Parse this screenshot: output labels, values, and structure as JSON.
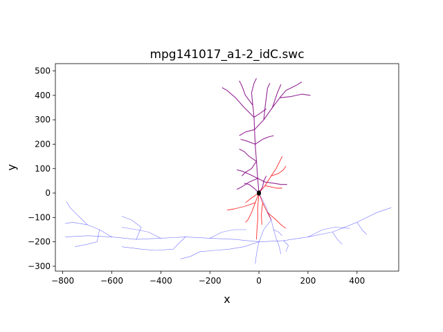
{
  "chart_data": {
    "type": "line",
    "title": "mpg141017_a1-2_idC.swc",
    "xlabel": "x",
    "ylabel": "y",
    "xlim": [
      -830,
      570
    ],
    "ylim": [
      -320,
      530
    ],
    "xticks": [
      -800,
      -600,
      -400,
      -200,
      0,
      200,
      400
    ],
    "yticks": [
      -300,
      -200,
      -100,
      0,
      100,
      200,
      300,
      400,
      500
    ],
    "grid": false,
    "legend": "none",
    "colors": {
      "soma": "#000000",
      "axon": "#0000ff",
      "basal_dendrite": "#ff0000",
      "apical_dendrite": "#800080"
    },
    "series": [
      {
        "type": "apical_dendrite",
        "segments": [
          [
            [
              0,
              0
            ],
            [
              -5,
              60
            ],
            [
              -10,
              130
            ],
            [
              -15,
              200
            ],
            [
              -18,
              260
            ],
            [
              -20,
              310
            ],
            [
              -25,
              360
            ],
            [
              -30,
              410
            ]
          ],
          [
            [
              -18,
              260
            ],
            [
              20,
              300
            ],
            [
              55,
              350
            ],
            [
              85,
              390
            ],
            [
              110,
              420
            ],
            [
              150,
              440
            ],
            [
              175,
              455
            ]
          ],
          [
            [
              85,
              390
            ],
            [
              130,
              395
            ],
            [
              175,
              405
            ],
            [
              210,
              400
            ]
          ],
          [
            [
              -20,
              310
            ],
            [
              -60,
              350
            ],
            [
              -95,
              390
            ],
            [
              -130,
              420
            ],
            [
              -150,
              432
            ]
          ],
          [
            [
              -25,
              360
            ],
            [
              -55,
              400
            ],
            [
              -70,
              440
            ],
            [
              -80,
              460
            ]
          ],
          [
            [
              -30,
              410
            ],
            [
              -20,
              450
            ],
            [
              -10,
              470
            ]
          ],
          [
            [
              20,
              300
            ],
            [
              25,
              350
            ],
            [
              30,
              390
            ],
            [
              35,
              430
            ],
            [
              45,
              450
            ]
          ],
          [
            [
              55,
              350
            ],
            [
              75,
              410
            ],
            [
              90,
              445
            ]
          ],
          [
            [
              -10,
              130
            ],
            [
              -40,
              150
            ],
            [
              -60,
              170
            ],
            [
              -80,
              180
            ]
          ],
          [
            [
              -15,
              200
            ],
            [
              15,
              220
            ],
            [
              40,
              230
            ],
            [
              60,
              235
            ]
          ],
          [
            [
              -5,
              60
            ],
            [
              -35,
              75
            ],
            [
              -70,
              90
            ],
            [
              -90,
              95
            ]
          ],
          [
            [
              -5,
              60
            ],
            [
              25,
              45
            ],
            [
              60,
              40
            ],
            [
              90,
              35
            ],
            [
              115,
              35
            ]
          ],
          [
            [
              -5,
              60
            ],
            [
              -40,
              45
            ],
            [
              -70,
              25
            ],
            [
              -90,
              15
            ]
          ],
          [
            [
              -10,
              130
            ],
            [
              -30,
              100
            ],
            [
              -55,
              85
            ],
            [
              -70,
              70
            ]
          ],
          [
            [
              -18,
              260
            ],
            [
              -55,
              250
            ],
            [
              -80,
              235
            ]
          ],
          [
            [
              -15,
              200
            ],
            [
              -55,
              215
            ],
            [
              -75,
              220
            ]
          ],
          [
            [
              -20,
              310
            ],
            [
              10,
              330
            ],
            [
              30,
              345
            ]
          ],
          [
            [
              0,
              0
            ],
            [
              -20,
              20
            ],
            [
              -40,
              35
            ],
            [
              -60,
              40
            ]
          ],
          [
            [
              0,
              0
            ],
            [
              15,
              25
            ],
            [
              20,
              50
            ],
            [
              30,
              70
            ]
          ]
        ]
      },
      {
        "type": "basal_dendrite",
        "segments": [
          [
            [
              0,
              0
            ],
            [
              -15,
              -40
            ],
            [
              -30,
              -80
            ],
            [
              -45,
              -110
            ],
            [
              -55,
              -120
            ]
          ],
          [
            [
              0,
              0
            ],
            [
              15,
              -40
            ],
            [
              35,
              -80
            ],
            [
              50,
              -110
            ]
          ],
          [
            [
              -15,
              -40
            ],
            [
              -60,
              -55
            ],
            [
              -100,
              -65
            ],
            [
              -130,
              -70
            ]
          ],
          [
            [
              0,
              0
            ],
            [
              -5,
              -60
            ],
            [
              -5,
              -110
            ],
            [
              -8,
              -150
            ],
            [
              -10,
              -190
            ]
          ],
          [
            [
              15,
              -40
            ],
            [
              10,
              -90
            ],
            [
              12,
              -130
            ]
          ],
          [
            [
              35,
              -80
            ],
            [
              70,
              -110
            ],
            [
              90,
              -130
            ],
            [
              110,
              -145
            ]
          ],
          [
            [
              0,
              0
            ],
            [
              25,
              30
            ],
            [
              50,
              70
            ],
            [
              70,
              100
            ],
            [
              85,
              130
            ],
            [
              95,
              150
            ]
          ],
          [
            [
              50,
              70
            ],
            [
              80,
              80
            ],
            [
              100,
              95
            ],
            [
              110,
              110
            ]
          ],
          [
            [
              25,
              30
            ],
            [
              50,
              25
            ],
            [
              70,
              20
            ],
            [
              95,
              20
            ]
          ],
          [
            [
              0,
              0
            ],
            [
              -30,
              -20
            ],
            [
              -55,
              -40
            ]
          ]
        ]
      },
      {
        "type": "axon",
        "segments": [
          [
            [
              0,
              0
            ],
            [
              15,
              -30
            ],
            [
              30,
              -60
            ],
            [
              50,
              -110
            ],
            [
              60,
              -150
            ],
            [
              70,
              -185
            ],
            [
              80,
              -210
            ],
            [
              90,
              -250
            ]
          ],
          [
            [
              60,
              -150
            ],
            [
              80,
              -160
            ],
            [
              95,
              -175
            ]
          ],
          [
            [
              50,
              -110
            ],
            [
              20,
              -150
            ],
            [
              0,
              -200
            ],
            [
              -10,
              -250
            ],
            [
              -15,
              -290
            ]
          ],
          [
            [
              0,
              -200
            ],
            [
              -100,
              -190
            ],
            [
              -200,
              -185
            ],
            [
              -300,
              -180
            ],
            [
              -400,
              -185
            ],
            [
              -500,
              -190
            ],
            [
              -600,
              -180
            ],
            [
              -700,
              -175
            ],
            [
              -790,
              -180
            ]
          ],
          [
            [
              -300,
              -180
            ],
            [
              -350,
              -230
            ],
            [
              -420,
              -235
            ],
            [
              -480,
              -230
            ],
            [
              -560,
              -220
            ]
          ],
          [
            [
              -600,
              -180
            ],
            [
              -650,
              -150
            ],
            [
              -700,
              -130
            ],
            [
              -760,
              -120
            ],
            [
              -790,
              -125
            ]
          ],
          [
            [
              -700,
              -130
            ],
            [
              -740,
              -90
            ],
            [
              -770,
              -60
            ],
            [
              -785,
              -35
            ]
          ],
          [
            [
              -400,
              -185
            ],
            [
              -450,
              -160
            ],
            [
              -500,
              -150
            ],
            [
              -560,
              -140
            ]
          ],
          [
            [
              -500,
              -190
            ],
            [
              -480,
              -140
            ],
            [
              -520,
              -110
            ],
            [
              -560,
              -95
            ]
          ],
          [
            [
              -650,
              -150
            ],
            [
              -660,
              -200
            ],
            [
              -700,
              -210
            ],
            [
              -750,
              -220
            ]
          ],
          [
            [
              -200,
              -185
            ],
            [
              -150,
              -160
            ],
            [
              -100,
              -150
            ],
            [
              -50,
              -150
            ]
          ],
          [
            [
              0,
              -200
            ],
            [
              100,
              -195
            ],
            [
              200,
              -180
            ],
            [
              300,
              -160
            ],
            [
              400,
              -120
            ],
            [
              480,
              -80
            ],
            [
              540,
              -60
            ]
          ],
          [
            [
              200,
              -180
            ],
            [
              260,
              -150
            ],
            [
              310,
              -140
            ],
            [
              370,
              -145
            ]
          ],
          [
            [
              300,
              -160
            ],
            [
              320,
              -190
            ],
            [
              340,
              -210
            ]
          ],
          [
            [
              400,
              -120
            ],
            [
              420,
              -150
            ],
            [
              440,
              -170
            ]
          ],
          [
            [
              100,
              -195
            ],
            [
              120,
              -215
            ],
            [
              110,
              -240
            ]
          ],
          [
            [
              0,
              -200
            ],
            [
              -60,
              -220
            ],
            [
              -120,
              -230
            ],
            [
              -180,
              -235
            ],
            [
              -240,
              -240
            ]
          ],
          [
            [
              -240,
              -240
            ],
            [
              -280,
              -260
            ],
            [
              -320,
              -270
            ]
          ]
        ]
      },
      {
        "type": "soma",
        "segments": [
          [
            [
              -6,
              4
            ],
            [
              -3,
              8
            ],
            [
              3,
              8
            ],
            [
              6,
              4
            ],
            [
              6,
              -4
            ],
            [
              3,
              -8
            ],
            [
              -3,
              -8
            ],
            [
              -6,
              -4
            ],
            [
              -6,
              4
            ]
          ]
        ]
      }
    ]
  }
}
